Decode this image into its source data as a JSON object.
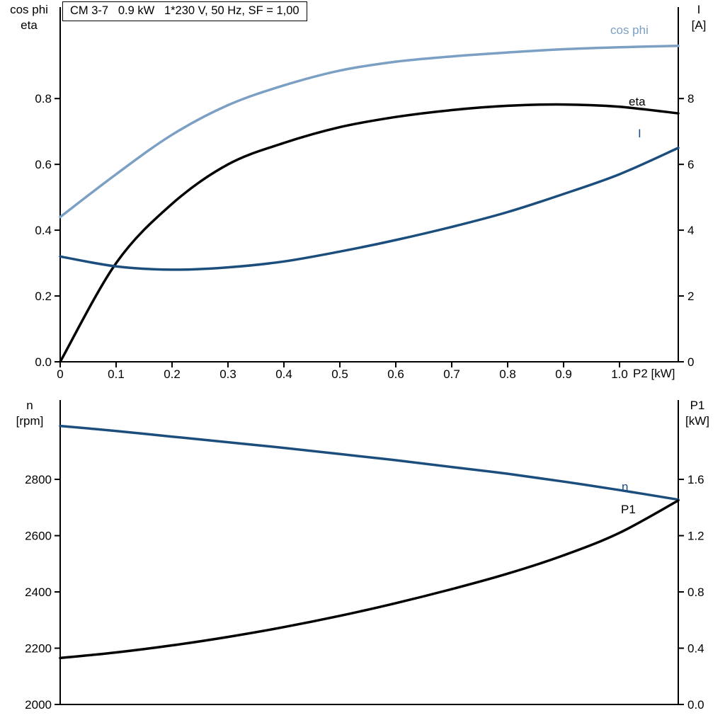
{
  "colors": {
    "axis": "#000000",
    "light_blue": "#7BA0C4",
    "dark_blue": "#1B4E7D",
    "black": "#000000"
  },
  "chart_data": [
    {
      "type": "line",
      "title": "CM 3-7   0.9 kW   1*230 V, 50 Hz, SF = 1,00",
      "xlabel": "P2 [kW]",
      "x_range": [
        0,
        1.105
      ],
      "x": [
        0,
        0.1,
        0.2,
        0.3,
        0.4,
        0.5,
        0.6,
        0.7,
        0.8,
        0.9,
        1.0,
        1.105
      ],
      "x_ticks": [
        0,
        0.1,
        0.2,
        0.3,
        0.4,
        0.5,
        0.6,
        0.7,
        0.8,
        0.9,
        1.0
      ],
      "x_tick_labels": [
        "0",
        "0.1",
        "0.2",
        "0.3",
        "0.4",
        "0.5",
        "0.6",
        "0.7",
        "0.8",
        "0.9",
        "1.0"
      ],
      "left_axis": {
        "title_lines": [
          "cos phi",
          "eta"
        ],
        "range": [
          0,
          1.078
        ],
        "ticks": [
          0,
          0.2,
          0.4,
          0.6,
          0.8
        ],
        "tick_labels": [
          "0.0",
          "0.2",
          "0.4",
          "0.6",
          "0.8"
        ]
      },
      "right_axis": {
        "title_lines": [
          "I",
          "[A]"
        ],
        "range": [
          0,
          10.78
        ],
        "ticks": [
          0,
          2,
          4,
          6,
          8
        ],
        "tick_labels": [
          "0",
          "2",
          "4",
          "6",
          "8"
        ]
      },
      "grid": false,
      "legend_position": "inline-right",
      "series": [
        {
          "name": "cos phi",
          "axis": "left",
          "color": "#7BA0C4",
          "values": [
            0.44,
            0.57,
            0.69,
            0.78,
            0.84,
            0.885,
            0.912,
            0.928,
            0.94,
            0.95,
            0.956,
            0.96
          ]
        },
        {
          "name": "eta",
          "axis": "left",
          "color": "#000000",
          "values": [
            0,
            0.3,
            0.48,
            0.6,
            0.665,
            0.713,
            0.744,
            0.765,
            0.778,
            0.782,
            0.775,
            0.755
          ]
        },
        {
          "name": "I",
          "axis": "right",
          "color": "#1B4E7D",
          "values": [
            3.2,
            2.9,
            2.8,
            2.87,
            3.05,
            3.35,
            3.7,
            4.1,
            4.55,
            5.1,
            5.7,
            6.5
          ]
        }
      ]
    },
    {
      "type": "line",
      "title": "",
      "xlabel": "",
      "x_range": [
        0,
        1.105
      ],
      "x": [
        0,
        0.1,
        0.2,
        0.3,
        0.4,
        0.5,
        0.6,
        0.7,
        0.8,
        0.9,
        1.0,
        1.105
      ],
      "x_ticks": [],
      "x_tick_labels": [],
      "left_axis": {
        "title_lines": [
          "n",
          "[rpm]"
        ],
        "range": [
          2000,
          3082
        ],
        "ticks": [
          2000,
          2200,
          2400,
          2600,
          2800
        ],
        "tick_labels": [
          "2000",
          "2200",
          "2400",
          "2600",
          "2800"
        ]
      },
      "right_axis": {
        "title_lines": [
          "P1",
          "[kW]"
        ],
        "range": [
          0,
          2.164
        ],
        "ticks": [
          0,
          0.4,
          0.8,
          1.2,
          1.6
        ],
        "tick_labels": [
          "0.0",
          "0.4",
          "0.8",
          "1.2",
          "1.6"
        ]
      },
      "grid": false,
      "legend_position": "inline-right",
      "series": [
        {
          "name": "n",
          "axis": "left",
          "color": "#1B4E7D",
          "values": [
            2990,
            2972,
            2952,
            2932,
            2912,
            2890,
            2868,
            2844,
            2820,
            2792,
            2762,
            2728
          ]
        },
        {
          "name": "P1",
          "axis": "right",
          "color": "#000000",
          "values": [
            0.33,
            0.37,
            0.42,
            0.48,
            0.55,
            0.63,
            0.72,
            0.82,
            0.93,
            1.06,
            1.22,
            1.45
          ]
        }
      ]
    }
  ]
}
